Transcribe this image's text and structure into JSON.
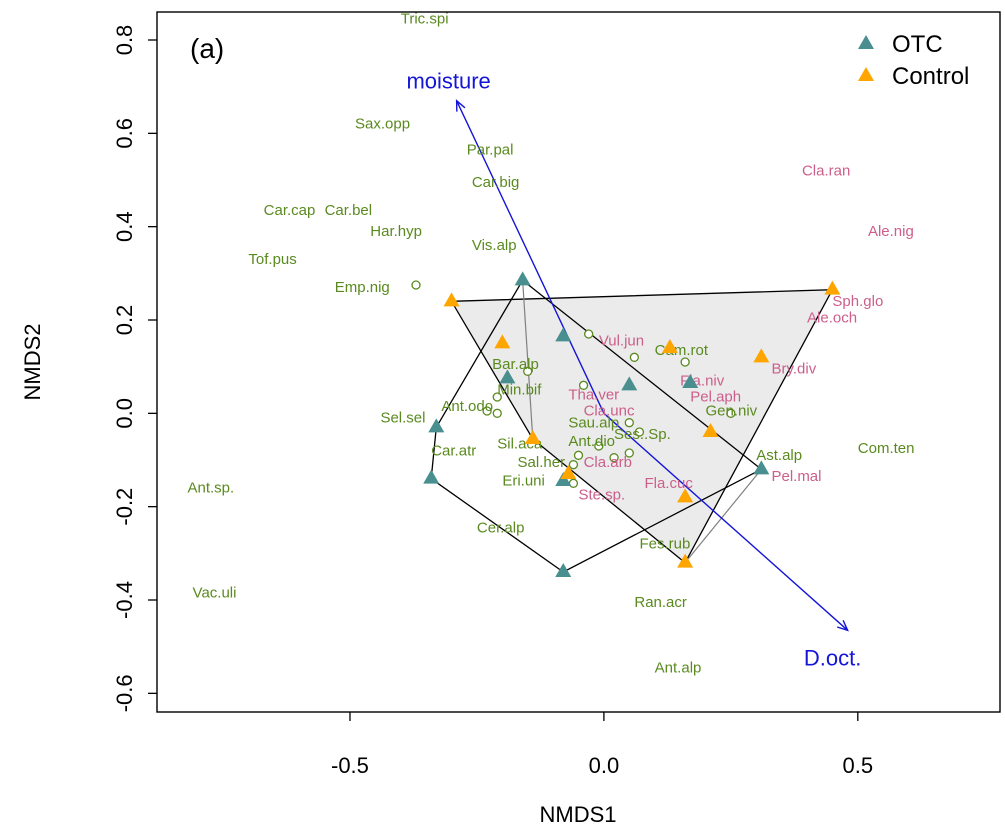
{
  "chart_data": {
    "type": "scatter",
    "panel_label": "(a)",
    "xlabel": "NMDS1",
    "ylabel": "NMDS2",
    "xlim": [
      -0.88,
      0.78
    ],
    "ylim": [
      -0.64,
      0.86
    ],
    "x_ticks": [
      -0.5,
      0.0,
      0.5
    ],
    "x_tick_labels": [
      "-0.5",
      "0.0",
      "0.5"
    ],
    "y_ticks": [
      -0.6,
      -0.4,
      -0.2,
      0.0,
      0.2,
      0.4,
      0.6,
      0.8
    ],
    "y_tick_labels": [
      "-0.6",
      "-0.4",
      "-0.2",
      "0.0",
      "0.2",
      "0.4",
      "0.6",
      "0.8"
    ],
    "grid": false,
    "legend": {
      "position": "top-right",
      "entries": [
        {
          "label": "OTC",
          "color": "#4a8f8f",
          "marker": "triangle"
        },
        {
          "label": "Control",
          "color": "#ffa500",
          "marker": "triangle"
        }
      ]
    },
    "colors": {
      "otc": "#4a8f8f",
      "control": "#ffa500",
      "species_green": "#5a8a1f",
      "species_pink": "#cc5f8a",
      "vector": "#1515d8",
      "hull_fill": "#ebebeb"
    },
    "series": [
      {
        "name": "OTC",
        "points": [
          [
            -0.16,
            0.285
          ],
          [
            -0.08,
            0.165
          ],
          [
            -0.19,
            0.075
          ],
          [
            0.05,
            0.06
          ],
          [
            0.17,
            0.065
          ],
          [
            -0.33,
            -0.03
          ],
          [
            -0.34,
            -0.14
          ],
          [
            -0.08,
            -0.145
          ],
          [
            0.31,
            -0.12
          ],
          [
            -0.08,
            -0.34
          ]
        ]
      },
      {
        "name": "Control",
        "points": [
          [
            -0.3,
            0.24
          ],
          [
            -0.2,
            0.15
          ],
          [
            0.13,
            0.14
          ],
          [
            0.31,
            0.12
          ],
          [
            0.45,
            0.265
          ],
          [
            0.21,
            -0.04
          ],
          [
            -0.14,
            -0.055
          ],
          [
            -0.07,
            -0.13
          ],
          [
            0.16,
            -0.18
          ],
          [
            0.16,
            -0.32
          ]
        ]
      }
    ],
    "hulls": {
      "OTC": [
        [
          -0.16,
          0.285
        ],
        [
          0.31,
          -0.12
        ],
        [
          -0.08,
          -0.34
        ],
        [
          -0.34,
          -0.14
        ],
        [
          -0.33,
          -0.03
        ]
      ],
      "Control": [
        [
          -0.3,
          0.24
        ],
        [
          0.45,
          0.265
        ],
        [
          0.16,
          -0.32
        ],
        [
          -0.14,
          -0.055
        ]
      ]
    },
    "vectors": [
      {
        "label": "moisture",
        "x": -0.29,
        "y": 0.67
      },
      {
        "label": "D.oct.",
        "x": 0.48,
        "y": -0.465
      }
    ],
    "species_points": [
      [
        -0.37,
        0.275
      ],
      [
        -0.03,
        0.17
      ],
      [
        0.06,
        0.12
      ],
      [
        0.16,
        0.11
      ],
      [
        -0.15,
        0.09
      ],
      [
        -0.04,
        0.06
      ],
      [
        -0.21,
        0.035
      ],
      [
        -0.21,
        0.0
      ],
      [
        -0.23,
        0.005
      ],
      [
        0.25,
        0.0
      ],
      [
        -0.01,
        -0.07
      ],
      [
        0.05,
        -0.02
      ],
      [
        0.07,
        -0.04
      ],
      [
        0.05,
        -0.085
      ],
      [
        -0.05,
        -0.09
      ],
      [
        -0.06,
        -0.11
      ],
      [
        -0.06,
        -0.15
      ],
      [
        0.02,
        -0.095
      ]
    ],
    "species": [
      {
        "label": "Tric.spi",
        "x": -0.4,
        "y": 0.835,
        "group": "green"
      },
      {
        "label": "Sax.opp",
        "x": -0.49,
        "y": 0.61,
        "group": "green"
      },
      {
        "label": "Par.pal",
        "x": -0.27,
        "y": 0.555,
        "group": "green"
      },
      {
        "label": "Car.big",
        "x": -0.26,
        "y": 0.485,
        "group": "green"
      },
      {
        "label": "Car.cap",
        "x": -0.67,
        "y": 0.425,
        "group": "green"
      },
      {
        "label": "Car.bel",
        "x": -0.55,
        "y": 0.425,
        "group": "green"
      },
      {
        "label": "Har.hyp",
        "x": -0.46,
        "y": 0.38,
        "group": "green"
      },
      {
        "label": "Vis.alp",
        "x": -0.26,
        "y": 0.35,
        "group": "green"
      },
      {
        "label": "Tof.pus",
        "x": -0.7,
        "y": 0.32,
        "group": "green"
      },
      {
        "label": "Emp.nig",
        "x": -0.53,
        "y": 0.26,
        "group": "green"
      },
      {
        "label": "Vul.jun",
        "x": -0.01,
        "y": 0.145,
        "group": "pink"
      },
      {
        "label": "Cam.rot",
        "x": 0.1,
        "y": 0.125,
        "group": "green"
      },
      {
        "label": "Bar.alp",
        "x": -0.22,
        "y": 0.095,
        "group": "green"
      },
      {
        "label": "Bry.div",
        "x": 0.33,
        "y": 0.085,
        "group": "pink"
      },
      {
        "label": "Fla.niv",
        "x": 0.15,
        "y": 0.06,
        "group": "pink"
      },
      {
        "label": "Min.bif",
        "x": -0.21,
        "y": 0.04,
        "group": "green"
      },
      {
        "label": "Tha.ver",
        "x": -0.07,
        "y": 0.03,
        "group": "pink"
      },
      {
        "label": "Pel.aph",
        "x": 0.17,
        "y": 0.025,
        "group": "pink"
      },
      {
        "label": "Ant.odo",
        "x": -0.32,
        "y": 0.005,
        "group": "green"
      },
      {
        "label": "Cla.unc",
        "x": -0.04,
        "y": -0.005,
        "group": "pink"
      },
      {
        "label": "Gen.niv",
        "x": 0.2,
        "y": -0.005,
        "group": "green"
      },
      {
        "label": "Sel.sel",
        "x": -0.44,
        "y": -0.02,
        "group": "green"
      },
      {
        "label": "Sau.alp",
        "x": -0.07,
        "y": -0.03,
        "group": "green"
      },
      {
        "label": "Ses..Sp.",
        "x": 0.02,
        "y": -0.055,
        "group": "green"
      },
      {
        "label": "Ant.dio",
        "x": -0.07,
        "y": -0.07,
        "group": "green"
      },
      {
        "label": "Sil.aca",
        "x": -0.21,
        "y": -0.075,
        "group": "green"
      },
      {
        "label": "Car.atr",
        "x": -0.34,
        "y": -0.09,
        "group": "green"
      },
      {
        "label": "Sal.her",
        "x": -0.17,
        "y": -0.115,
        "group": "green"
      },
      {
        "label": "Cla.arb",
        "x": -0.04,
        "y": -0.115,
        "group": "pink"
      },
      {
        "label": "Ast.alp",
        "x": 0.3,
        "y": -0.1,
        "group": "green"
      },
      {
        "label": "Com.ten",
        "x": 0.5,
        "y": -0.085,
        "group": "green"
      },
      {
        "label": "Eri.uni",
        "x": -0.2,
        "y": -0.155,
        "group": "green"
      },
      {
        "label": "Fla.cuc",
        "x": 0.08,
        "y": -0.16,
        "group": "pink"
      },
      {
        "label": "Pel.mal",
        "x": 0.33,
        "y": -0.145,
        "group": "pink"
      },
      {
        "label": "Ant.sp.",
        "x": -0.82,
        "y": -0.17,
        "group": "green"
      },
      {
        "label": "Ste.sp.",
        "x": -0.05,
        "y": -0.185,
        "group": "pink"
      },
      {
        "label": "Cer.alp",
        "x": -0.25,
        "y": -0.255,
        "group": "green"
      },
      {
        "label": "Fes.rub",
        "x": 0.07,
        "y": -0.29,
        "group": "green"
      },
      {
        "label": "Vac.uli",
        "x": -0.81,
        "y": -0.395,
        "group": "green"
      },
      {
        "label": "Ran.acr",
        "x": 0.06,
        "y": -0.415,
        "group": "green"
      },
      {
        "label": "Cla.ran",
        "x": 0.39,
        "y": 0.51,
        "group": "pink"
      },
      {
        "label": "Ale.nig",
        "x": 0.52,
        "y": 0.38,
        "group": "pink"
      },
      {
        "label": "Sph.glo",
        "x": 0.45,
        "y": 0.23,
        "group": "pink"
      },
      {
        "label": "Ale.och",
        "x": 0.4,
        "y": 0.195,
        "group": "pink"
      },
      {
        "label": "Ant.alp",
        "x": 0.1,
        "y": -0.555,
        "group": "green"
      }
    ]
  }
}
